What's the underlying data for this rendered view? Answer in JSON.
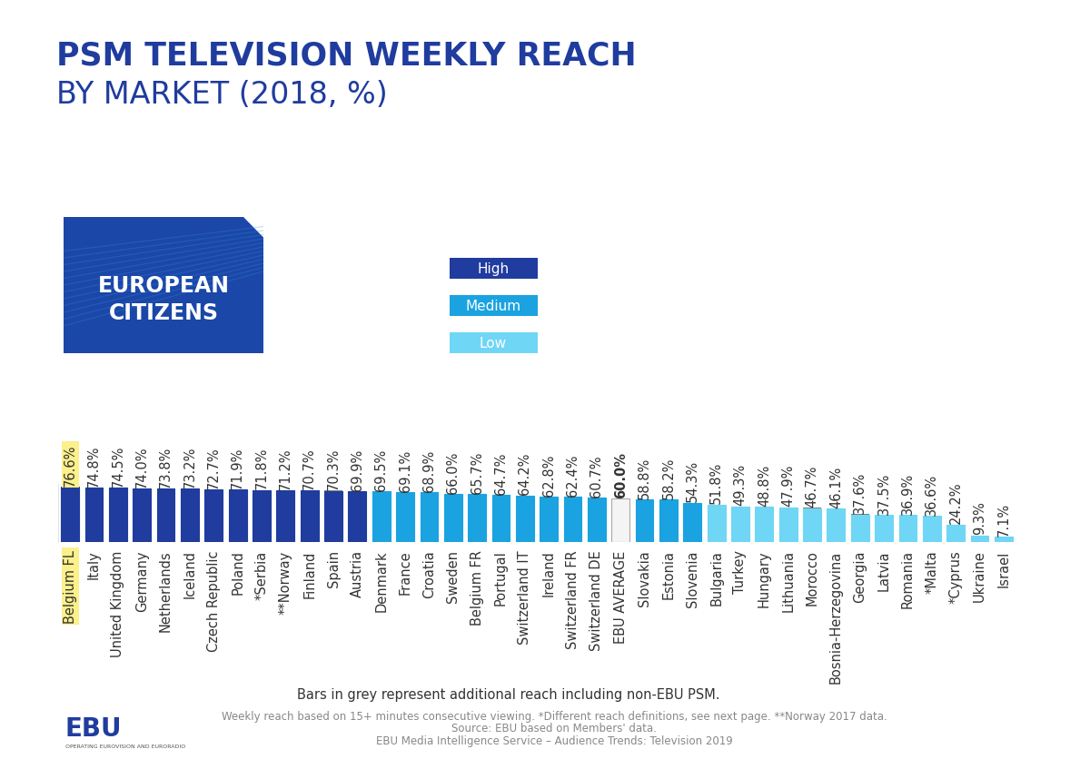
{
  "chart_data": {
    "type": "bar",
    "title": "PSM TELEVISION WEEKLY REACH",
    "subtitle": "BY MARKET (2018, %)",
    "badge": "EUROPEAN\nCITIZENS",
    "map_legend": [
      {
        "name": "High",
        "color": "#1f3c9e"
      },
      {
        "name": "Medium",
        "color": "#1aa3e0"
      },
      {
        "name": "Low",
        "color": "#6fd6f5"
      }
    ],
    "categories": [
      "Belgium FL",
      "Italy",
      "United Kingdom",
      "Germany",
      "Netherlands",
      "Iceland",
      "Czech Republic",
      "Poland",
      "*Serbia",
      "**Norway",
      "Finland",
      "Spain",
      "Austria",
      "Denmark",
      "France",
      "Croatia",
      "Sweden",
      "Belgium FR",
      "Portugal",
      "Switzerland IT",
      "Ireland",
      "Switzerland FR",
      "Switzerland DE",
      "EBU AVERAGE",
      "Slovakia",
      "Estonia",
      "Slovenia",
      "Bulgaria",
      "Turkey",
      "Hungary",
      "Lithuania",
      "Morocco",
      "Bosnia-Herzegovina",
      "Georgia",
      "Latvia",
      "Romania",
      "*Malta",
      "*Cyprus",
      "Ukraine",
      "Israel"
    ],
    "values": [
      76.6,
      74.8,
      74.5,
      74.0,
      73.8,
      73.2,
      72.7,
      71.9,
      71.8,
      71.2,
      70.7,
      70.3,
      69.9,
      69.5,
      69.1,
      68.9,
      66.0,
      65.7,
      64.7,
      64.2,
      62.8,
      62.4,
      60.7,
      60.0,
      58.8,
      58.2,
      54.3,
      51.8,
      49.3,
      48.8,
      47.9,
      46.7,
      46.1,
      37.6,
      37.5,
      36.9,
      36.6,
      24.2,
      9.3,
      7.1
    ],
    "value_labels": [
      "76.6%",
      "74.8%",
      "74.5%",
      "74.0%",
      "73.8%",
      "73.2%",
      "72.7%",
      "71.9%",
      "71.8%",
      "71.2%",
      "70.7%",
      "70.3%",
      "69.9%",
      "69.5%",
      "69.1%",
      "68.9%",
      "66.0%",
      "65.7%",
      "64.7%",
      "64.2%",
      "62.8%",
      "62.4%",
      "60.7%",
      "60.0%",
      "58.8%",
      "58.2%",
      "54.3%",
      "51.8%",
      "49.3%",
      "48.8%",
      "47.9%",
      "46.7%",
      "46.1%",
      "37.6%",
      "37.5%",
      "36.9%",
      "36.6%",
      "24.2%",
      "9.3%",
      "7.1%"
    ],
    "colors": [
      "#1f3c9e",
      "#1f3c9e",
      "#1f3c9e",
      "#1f3c9e",
      "#1f3c9e",
      "#1f3c9e",
      "#1f3c9e",
      "#1f3c9e",
      "#1f3c9e",
      "#1f3c9e",
      "#1f3c9e",
      "#1f3c9e",
      "#1f3c9e",
      "#1aa3e0",
      "#1aa3e0",
      "#1aa3e0",
      "#1aa3e0",
      "#1aa3e0",
      "#1aa3e0",
      "#1aa3e0",
      "#1aa3e0",
      "#1aa3e0",
      "#1aa3e0",
      "#f4f4f4",
      "#1aa3e0",
      "#1aa3e0",
      "#1aa3e0",
      "#6fd6f5",
      "#6fd6f5",
      "#6fd6f5",
      "#6fd6f5",
      "#6fd6f5",
      "#6fd6f5",
      "#6fd6f5",
      "#6fd6f5",
      "#6fd6f5",
      "#6fd6f5",
      "#6fd6f5",
      "#6fd6f5",
      "#6fd6f5"
    ],
    "additional_reach": {
      "color": "#7f7f7f",
      "values": [
        null,
        null,
        null,
        null,
        null,
        null,
        null,
        null,
        null,
        null,
        null,
        1.0,
        null,
        null,
        null,
        null,
        null,
        null,
        null,
        null,
        null,
        null,
        null,
        null,
        null,
        null,
        null,
        null,
        null,
        null,
        null,
        0.5,
        null,
        0.8,
        null,
        null,
        null,
        null,
        null,
        null
      ]
    },
    "ylim": [
      0,
      80
    ],
    "yticks": [],
    "tick_labels": "x",
    "data_labels": true,
    "grid": false,
    "note": "Bars in grey represent additional reach including non-EBU PSM.",
    "footnotes": [
      "Weekly reach based on 15+ minutes consecutive viewing. *Different reach definitions, see next page. **Norway 2017 data.",
      "Source: EBU based on Members' data.",
      "EBU Media Intelligence Service – Audience Trends: Television 2019"
    ],
    "logo": "EBU",
    "logo_tagline": "OPERATING EUROVISION AND EURORADIO"
  }
}
